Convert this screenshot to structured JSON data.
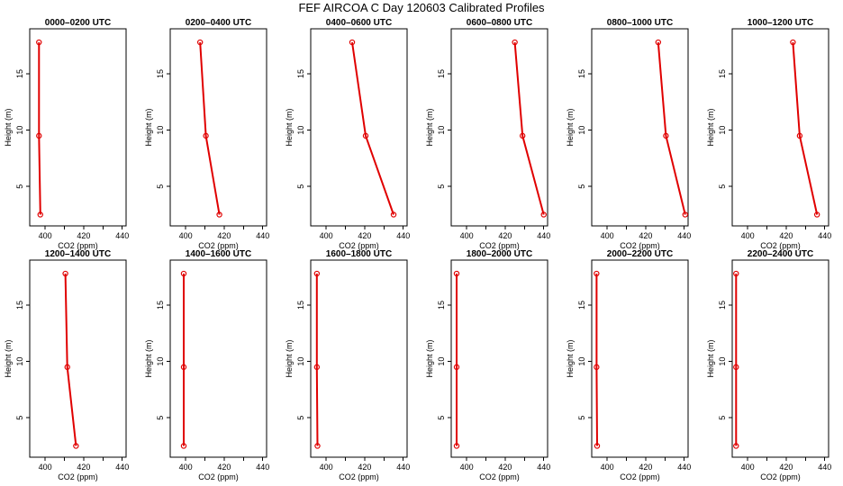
{
  "title": "FEF AIRCOA C  Day 120603  Calibrated Profiles",
  "colors": {
    "series": "#e00000",
    "axis": "#000000",
    "background": "#ffffff"
  },
  "chart_data": [
    {
      "type": "line",
      "title": "0000–0200 UTC",
      "xlabel": "CO2 (ppm)",
      "ylabel": "Height (m)",
      "xlim": [
        392,
        442
      ],
      "ylim": [
        1.5,
        19
      ],
      "x_ticks": [
        400,
        420,
        440
      ],
      "y_ticks": [
        5,
        10,
        15
      ],
      "co2": [
        397.5,
        396.8,
        396.8
      ],
      "height": [
        2.5,
        9.5,
        17.8
      ]
    },
    {
      "type": "line",
      "title": "0200–0400 UTC",
      "xlabel": "CO2 (ppm)",
      "ylabel": "Height (m)",
      "xlim": [
        392,
        442
      ],
      "ylim": [
        1.5,
        19
      ],
      "x_ticks": [
        400,
        420,
        440
      ],
      "y_ticks": [
        5,
        10,
        15
      ],
      "co2": [
        417.5,
        410.5,
        407.5
      ],
      "height": [
        2.5,
        9.5,
        17.8
      ]
    },
    {
      "type": "line",
      "title": "0400–0600 UTC",
      "xlabel": "CO2 (ppm)",
      "ylabel": "Height (m)",
      "xlim": [
        392,
        442
      ],
      "ylim": [
        1.5,
        19
      ],
      "x_ticks": [
        400,
        420,
        440
      ],
      "y_ticks": [
        5,
        10,
        15
      ],
      "co2": [
        435,
        420.5,
        413.5
      ],
      "height": [
        2.5,
        9.5,
        17.8
      ]
    },
    {
      "type": "line",
      "title": "0600–0800 UTC",
      "xlabel": "CO2 (ppm)",
      "ylabel": "Height (m)",
      "xlim": [
        392,
        442
      ],
      "ylim": [
        1.5,
        19
      ],
      "x_ticks": [
        400,
        420,
        440
      ],
      "y_ticks": [
        5,
        10,
        15
      ],
      "co2": [
        440,
        429,
        425
      ],
      "height": [
        2.5,
        9.5,
        17.8
      ]
    },
    {
      "type": "line",
      "title": "0800–1000 UTC",
      "xlabel": "CO2 (ppm)",
      "ylabel": "Height (m)",
      "xlim": [
        392,
        442
      ],
      "ylim": [
        1.5,
        19
      ],
      "x_ticks": [
        400,
        420,
        440
      ],
      "y_ticks": [
        5,
        10,
        15
      ],
      "co2": [
        440.5,
        430.5,
        426.5
      ],
      "height": [
        2.5,
        9.5,
        17.8
      ]
    },
    {
      "type": "line",
      "title": "1000–1200 UTC",
      "xlabel": "CO2 (ppm)",
      "ylabel": "Height (m)",
      "xlim": [
        392,
        442
      ],
      "ylim": [
        1.5,
        19
      ],
      "x_ticks": [
        400,
        420,
        440
      ],
      "y_ticks": [
        5,
        10,
        15
      ],
      "co2": [
        436,
        427,
        423.5
      ],
      "height": [
        2.5,
        9.5,
        17.8
      ]
    },
    {
      "type": "line",
      "title": "1200–1400 UTC",
      "xlabel": "CO2 (ppm)",
      "ylabel": "Height (m)",
      "xlim": [
        392,
        442
      ],
      "ylim": [
        1.5,
        19
      ],
      "x_ticks": [
        400,
        420,
        440
      ],
      "y_ticks": [
        5,
        10,
        15
      ],
      "co2": [
        416,
        411.5,
        410.5
      ],
      "height": [
        2.5,
        9.5,
        17.8
      ]
    },
    {
      "type": "line",
      "title": "1400–1600 UTC",
      "xlabel": "CO2 (ppm)",
      "ylabel": "Height (m)",
      "xlim": [
        392,
        442
      ],
      "ylim": [
        1.5,
        19
      ],
      "x_ticks": [
        400,
        420,
        440
      ],
      "y_ticks": [
        5,
        10,
        15
      ],
      "co2": [
        399,
        399,
        399
      ],
      "height": [
        2.5,
        9.5,
        17.8
      ]
    },
    {
      "type": "line",
      "title": "1600–1800 UTC",
      "xlabel": "CO2 (ppm)",
      "ylabel": "Height (m)",
      "xlim": [
        392,
        442
      ],
      "ylim": [
        1.5,
        19
      ],
      "x_ticks": [
        400,
        420,
        440
      ],
      "y_ticks": [
        5,
        10,
        15
      ],
      "co2": [
        395.5,
        395.2,
        395.2
      ],
      "height": [
        2.5,
        9.5,
        17.8
      ]
    },
    {
      "type": "line",
      "title": "1800–2000 UTC",
      "xlabel": "CO2 (ppm)",
      "ylabel": "Height (m)",
      "xlim": [
        392,
        442
      ],
      "ylim": [
        1.5,
        19
      ],
      "x_ticks": [
        400,
        420,
        440
      ],
      "y_ticks": [
        5,
        10,
        15
      ],
      "co2": [
        394.8,
        394.8,
        394.8
      ],
      "height": [
        2.5,
        9.5,
        17.8
      ]
    },
    {
      "type": "line",
      "title": "2000–2200 UTC",
      "xlabel": "CO2 (ppm)",
      "ylabel": "Height (m)",
      "xlim": [
        392,
        442
      ],
      "ylim": [
        1.5,
        19
      ],
      "x_ticks": [
        400,
        420,
        440
      ],
      "y_ticks": [
        5,
        10,
        15
      ],
      "co2": [
        394.8,
        394.5,
        394.5
      ],
      "height": [
        2.5,
        9.5,
        17.8
      ]
    },
    {
      "type": "line",
      "title": "2200–2400 UTC",
      "xlabel": "CO2 (ppm)",
      "ylabel": "Height (m)",
      "xlim": [
        392,
        442
      ],
      "ylim": [
        1.5,
        19
      ],
      "x_ticks": [
        400,
        420,
        440
      ],
      "y_ticks": [
        5,
        10,
        15
      ],
      "co2": [
        394,
        394,
        394
      ],
      "height": [
        2.5,
        9.5,
        17.8
      ]
    }
  ]
}
